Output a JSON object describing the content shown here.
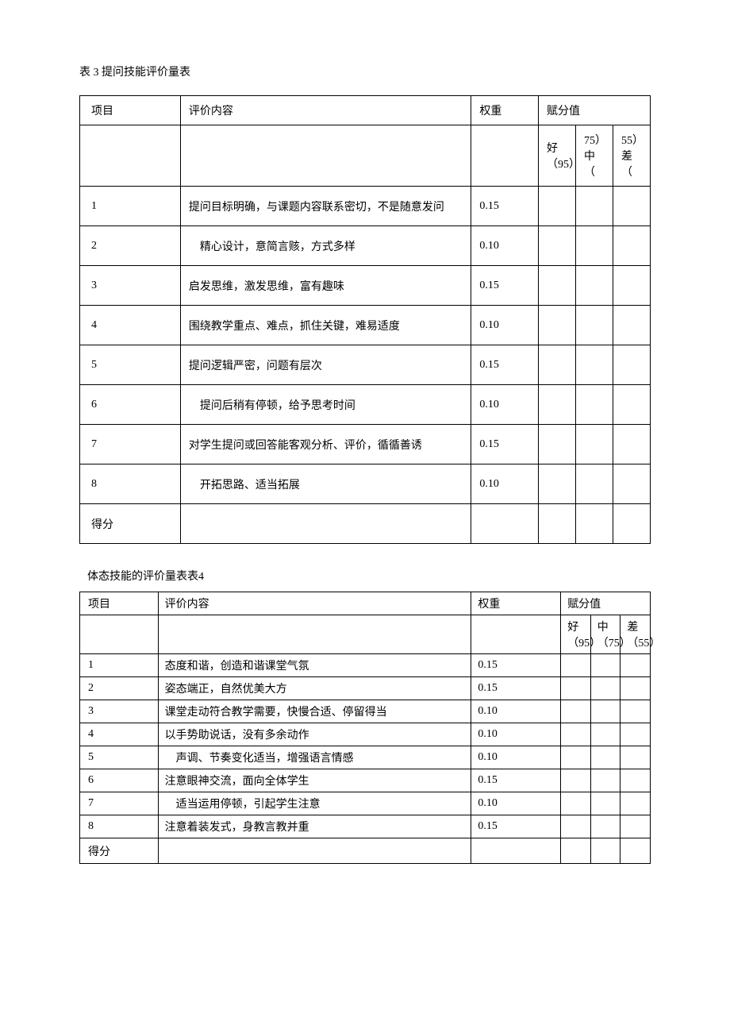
{
  "table1": {
    "title": "表 3 提问技能评价量表",
    "headers": {
      "project": "项目",
      "content": "评价内容",
      "weight": "权重",
      "score": "赋分值",
      "good": "好（95）",
      "mid": "75）中（",
      "bad": "55）差（"
    },
    "rows": [
      {
        "idx": "1",
        "content": "提问目标明确，与课题内容联系密切，不是随意发问",
        "weight": "0.15"
      },
      {
        "idx": "2",
        "content": "精心设计，意简言赅，方式多样",
        "weight": "0.10",
        "indent": true
      },
      {
        "idx": "3",
        "content": "启发思维，激发思维，富有趣味",
        "weight": "0.15"
      },
      {
        "idx": "4",
        "content": "围绕教学重点、难点，抓住关键，难易适度",
        "weight": "0.10"
      },
      {
        "idx": "5",
        "content": "提问逻辑严密，问题有层次",
        "weight": "0.15"
      },
      {
        "idx": "6",
        "content": "提问后稍有停顿，给予思考时间",
        "weight": "0.10",
        "indent": true
      },
      {
        "idx": "7",
        "content": "对学生提问或回答能客观分析、评价，循循善诱",
        "weight": "0.15"
      },
      {
        "idx": "8",
        "content": "开拓思路、适当拓展",
        "weight": "0.10",
        "indent": true
      }
    ],
    "score_label": "得分"
  },
  "table2": {
    "title": "体态技能的评价量表表4",
    "headers": {
      "project": "项目",
      "content": "评价内容",
      "weight": "权重",
      "score": "赋分值",
      "good": "好（95）",
      "mid": "中（75）",
      "bad": "差（55）"
    },
    "rows": [
      {
        "idx": "1",
        "content": "态度和谐，创造和谐课堂气氛",
        "weight": "0.15"
      },
      {
        "idx": "2",
        "content": "姿态端正，自然优美大方",
        "weight": "0.15"
      },
      {
        "idx": "3",
        "content": "课堂走动符合教学需要，快慢合适、停留得当",
        "weight": "0.10"
      },
      {
        "idx": "4",
        "content": "以手势助说话，没有多余动作",
        "weight": "0.10"
      },
      {
        "idx": "5",
        "content": "声调、节奏变化适当，增强语言情感",
        "weight": "0.10",
        "indent": true
      },
      {
        "idx": "6",
        "content": "注意眼神交流，面向全体学生",
        "weight": "0.15"
      },
      {
        "idx": "7",
        "content": "适当运用停顿，引起学生注意",
        "weight": "0.10",
        "indent": true
      },
      {
        "idx": "8",
        "content": "注意着装发式，身教言教并重",
        "weight": "0.15"
      }
    ],
    "score_label": "得分"
  }
}
